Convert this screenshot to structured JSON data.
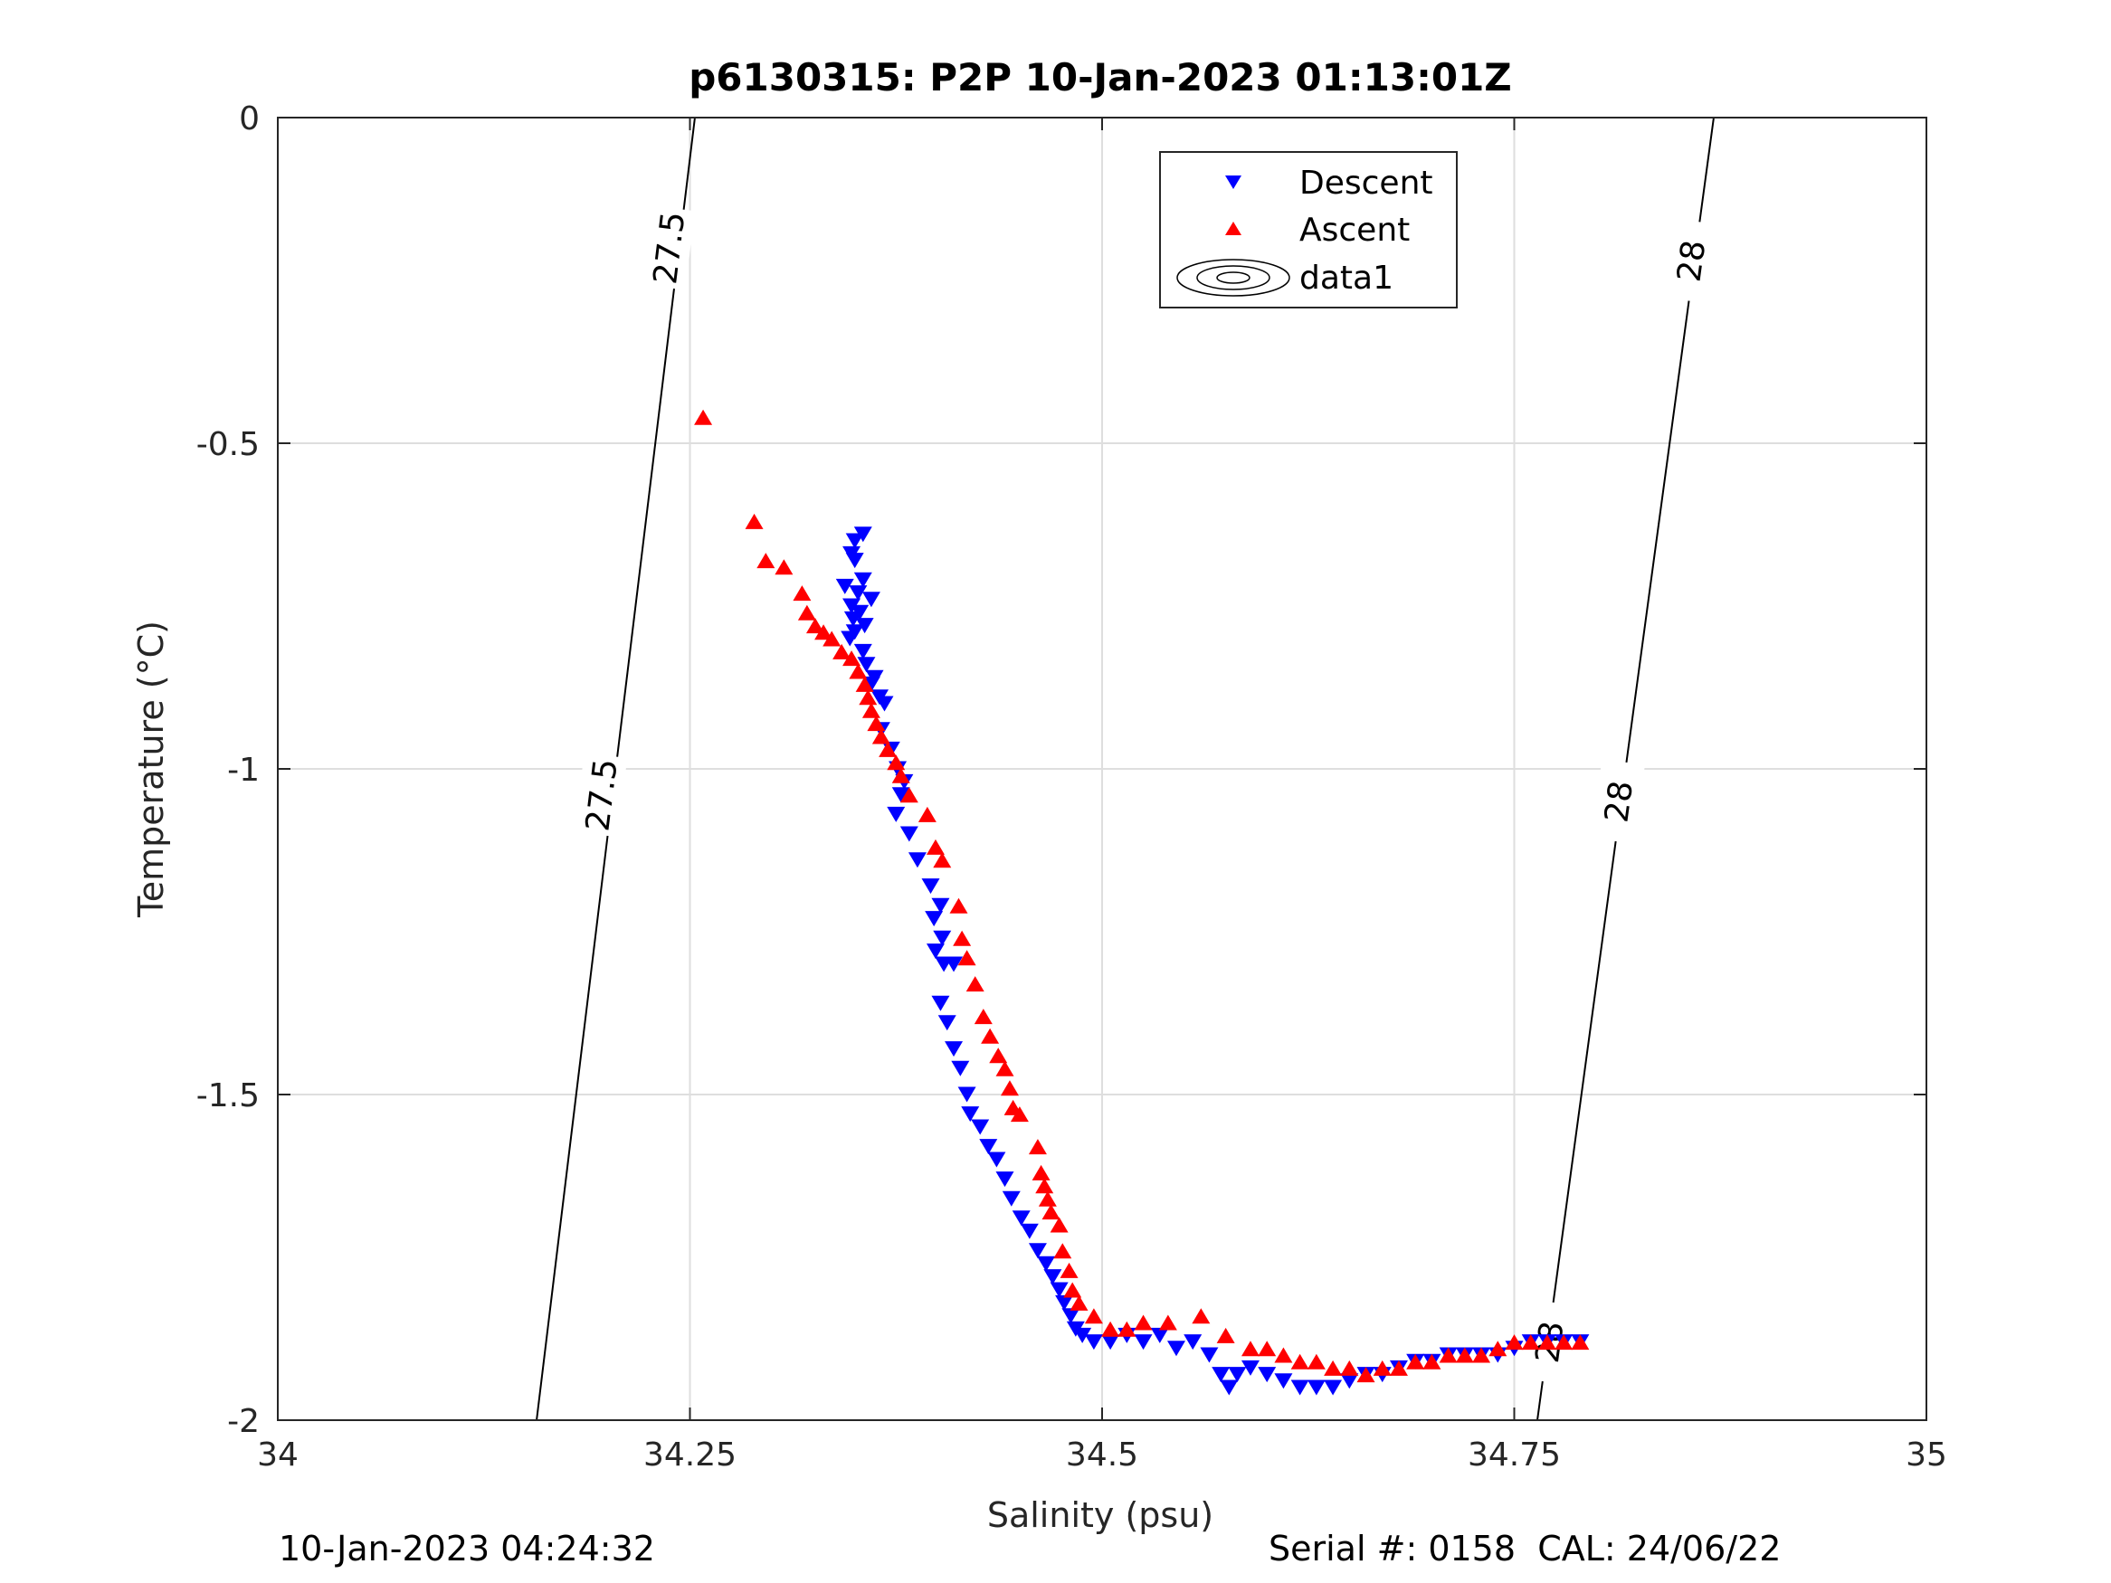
{
  "chart_data": {
    "type": "scatter",
    "title": "p6130315: P2P 10-Jan-2023 01:13:01Z",
    "xlabel": "Salinity (psu)",
    "ylabel": "Temperature (°C)",
    "xlim": [
      34,
      35
    ],
    "ylim": [
      -2,
      0
    ],
    "xticks": [
      34,
      34.25,
      34.5,
      34.75,
      35
    ],
    "xtick_labels": [
      "34",
      "34.25",
      "34.5",
      "34.75",
      "35"
    ],
    "yticks": [
      0,
      -0.5,
      -1,
      -1.5,
      -2
    ],
    "ytick_labels": [
      "0",
      "-0.5",
      "-1",
      "-1.5",
      "-2"
    ],
    "grid": true,
    "legend_position": "top-right",
    "series": [
      {
        "name": "Descent",
        "marker": "triangle-down",
        "color": "#0000ff",
        "points": [
          [
            34.355,
            -0.64
          ],
          [
            34.35,
            -0.65
          ],
          [
            34.348,
            -0.67
          ],
          [
            34.35,
            -0.68
          ],
          [
            34.355,
            -0.71
          ],
          [
            34.344,
            -0.72
          ],
          [
            34.352,
            -0.73
          ],
          [
            34.36,
            -0.74
          ],
          [
            34.348,
            -0.75
          ],
          [
            34.353,
            -0.76
          ],
          [
            34.349,
            -0.77
          ],
          [
            34.356,
            -0.78
          ],
          [
            34.35,
            -0.79
          ],
          [
            34.347,
            -0.8
          ],
          [
            34.355,
            -0.82
          ],
          [
            34.357,
            -0.84
          ],
          [
            34.362,
            -0.86
          ],
          [
            34.36,
            -0.87
          ],
          [
            34.365,
            -0.89
          ],
          [
            34.368,
            -0.9
          ],
          [
            34.366,
            -0.94
          ],
          [
            34.372,
            -0.97
          ],
          [
            34.376,
            -1.0
          ],
          [
            34.38,
            -1.02
          ],
          [
            34.378,
            -1.04
          ],
          [
            34.375,
            -1.07
          ],
          [
            34.383,
            -1.1
          ],
          [
            34.388,
            -1.14
          ],
          [
            34.396,
            -1.18
          ],
          [
            34.402,
            -1.21
          ],
          [
            34.398,
            -1.23
          ],
          [
            34.403,
            -1.26
          ],
          [
            34.399,
            -1.28
          ],
          [
            34.404,
            -1.3
          ],
          [
            34.41,
            -1.3
          ],
          [
            34.402,
            -1.36
          ],
          [
            34.406,
            -1.39
          ],
          [
            34.41,
            -1.43
          ],
          [
            34.414,
            -1.46
          ],
          [
            34.418,
            -1.5
          ],
          [
            34.42,
            -1.53
          ],
          [
            34.426,
            -1.55
          ],
          [
            34.431,
            -1.58
          ],
          [
            34.436,
            -1.6
          ],
          [
            34.441,
            -1.63
          ],
          [
            34.445,
            -1.66
          ],
          [
            34.451,
            -1.69
          ],
          [
            34.456,
            -1.71
          ],
          [
            34.461,
            -1.74
          ],
          [
            34.466,
            -1.76
          ],
          [
            34.47,
            -1.78
          ],
          [
            34.474,
            -1.8
          ],
          [
            34.477,
            -1.82
          ],
          [
            34.481,
            -1.84
          ],
          [
            34.484,
            -1.86
          ],
          [
            34.488,
            -1.87
          ],
          [
            34.495,
            -1.88
          ],
          [
            34.505,
            -1.88
          ],
          [
            34.515,
            -1.87
          ],
          [
            34.525,
            -1.88
          ],
          [
            34.535,
            -1.87
          ],
          [
            34.545,
            -1.89
          ],
          [
            34.555,
            -1.88
          ],
          [
            34.565,
            -1.9
          ],
          [
            34.572,
            -1.93
          ],
          [
            34.577,
            -1.95
          ],
          [
            34.582,
            -1.93
          ],
          [
            34.59,
            -1.92
          ],
          [
            34.6,
            -1.93
          ],
          [
            34.61,
            -1.94
          ],
          [
            34.62,
            -1.95
          ],
          [
            34.63,
            -1.95
          ],
          [
            34.64,
            -1.95
          ],
          [
            34.65,
            -1.94
          ],
          [
            34.66,
            -1.93
          ],
          [
            34.67,
            -1.93
          ],
          [
            34.68,
            -1.92
          ],
          [
            34.69,
            -1.91
          ],
          [
            34.7,
            -1.91
          ],
          [
            34.71,
            -1.9
          ],
          [
            34.72,
            -1.9
          ],
          [
            34.73,
            -1.9
          ],
          [
            34.74,
            -1.9
          ],
          [
            34.75,
            -1.89
          ],
          [
            34.76,
            -1.88
          ],
          [
            34.77,
            -1.88
          ],
          [
            34.78,
            -1.88
          ],
          [
            34.79,
            -1.88
          ]
        ]
      },
      {
        "name": "Ascent",
        "marker": "triangle-up",
        "color": "#ff0000",
        "points": [
          [
            34.258,
            -0.46
          ],
          [
            34.289,
            -0.62
          ],
          [
            34.296,
            -0.68
          ],
          [
            34.307,
            -0.69
          ],
          [
            34.318,
            -0.73
          ],
          [
            34.321,
            -0.76
          ],
          [
            34.326,
            -0.78
          ],
          [
            34.331,
            -0.79
          ],
          [
            34.336,
            -0.8
          ],
          [
            34.342,
            -0.82
          ],
          [
            34.348,
            -0.83
          ],
          [
            34.352,
            -0.85
          ],
          [
            34.356,
            -0.87
          ],
          [
            34.358,
            -0.89
          ],
          [
            34.36,
            -0.91
          ],
          [
            34.363,
            -0.93
          ],
          [
            34.366,
            -0.95
          ],
          [
            34.37,
            -0.97
          ],
          [
            34.375,
            -0.99
          ],
          [
            34.378,
            -1.01
          ],
          [
            34.383,
            -1.04
          ],
          [
            34.394,
            -1.07
          ],
          [
            34.399,
            -1.12
          ],
          [
            34.403,
            -1.14
          ],
          [
            34.413,
            -1.21
          ],
          [
            34.415,
            -1.26
          ],
          [
            34.418,
            -1.29
          ],
          [
            34.423,
            -1.33
          ],
          [
            34.428,
            -1.38
          ],
          [
            34.432,
            -1.41
          ],
          [
            34.437,
            -1.44
          ],
          [
            34.441,
            -1.46
          ],
          [
            34.444,
            -1.49
          ],
          [
            34.446,
            -1.52
          ],
          [
            34.45,
            -1.53
          ],
          [
            34.461,
            -1.58
          ],
          [
            34.463,
            -1.62
          ],
          [
            34.465,
            -1.64
          ],
          [
            34.467,
            -1.66
          ],
          [
            34.469,
            -1.68
          ],
          [
            34.474,
            -1.7
          ],
          [
            34.476,
            -1.74
          ],
          [
            34.48,
            -1.77
          ],
          [
            34.482,
            -1.8
          ],
          [
            34.486,
            -1.82
          ],
          [
            34.495,
            -1.84
          ],
          [
            34.505,
            -1.86
          ],
          [
            34.515,
            -1.86
          ],
          [
            34.525,
            -1.85
          ],
          [
            34.54,
            -1.85
          ],
          [
            34.56,
            -1.84
          ],
          [
            34.575,
            -1.87
          ],
          [
            34.59,
            -1.89
          ],
          [
            34.6,
            -1.89
          ],
          [
            34.61,
            -1.9
          ],
          [
            34.62,
            -1.91
          ],
          [
            34.63,
            -1.91
          ],
          [
            34.64,
            -1.92
          ],
          [
            34.65,
            -1.92
          ],
          [
            34.66,
            -1.93
          ],
          [
            34.67,
            -1.92
          ],
          [
            34.68,
            -1.92
          ],
          [
            34.69,
            -1.91
          ],
          [
            34.7,
            -1.91
          ],
          [
            34.71,
            -1.9
          ],
          [
            34.72,
            -1.9
          ],
          [
            34.73,
            -1.9
          ],
          [
            34.74,
            -1.89
          ],
          [
            34.75,
            -1.88
          ],
          [
            34.76,
            -1.88
          ],
          [
            34.77,
            -1.88
          ],
          [
            34.78,
            -1.88
          ],
          [
            34.79,
            -1.88
          ]
        ]
      }
    ],
    "contours": {
      "legend_name": "data1",
      "color": "#000000",
      "lines": [
        {
          "level": "27.5",
          "points": [
            [
              34.157,
              -2.0
            ],
            [
              34.253,
              0.0
            ]
          ],
          "labels": [
            {
              "text": "27.5",
              "at": [
                34.196,
                -1.04
              ]
            },
            {
              "text": "27.5",
              "at": [
                34.237,
                -0.2
              ]
            }
          ]
        },
        {
          "level": "28",
          "points": [
            [
              34.764,
              -2.0
            ],
            [
              34.871,
              0.0
            ]
          ],
          "labels": [
            {
              "text": "28",
              "at": [
                34.771,
                -1.88
              ]
            },
            {
              "text": "28",
              "at": [
                34.813,
                -1.05
              ]
            },
            {
              "text": "28",
              "at": [
                34.857,
                -0.22
              ]
            }
          ]
        }
      ]
    }
  },
  "footer": {
    "timestamp": "10-Jan-2023 04:24:32",
    "serial": "Serial #: 0158  CAL: 24/06/22"
  }
}
